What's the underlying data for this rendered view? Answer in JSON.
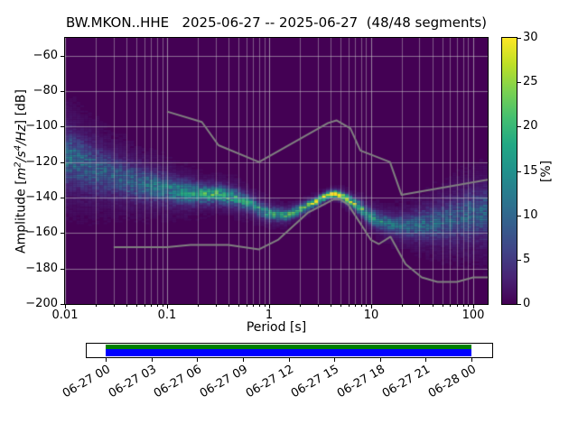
{
  "title": "BW.MKON..HHE   2025-06-27 -- 2025-06-27  (48/48 segments)",
  "axes": {
    "xlabel": "Period [s]",
    "ylabel": {
      "pre": "Amplitude [",
      "m": "m",
      "sup1": "2",
      "mid": "/s",
      "sup2": "4",
      "tail": "/Hz",
      "post": "] [dB]"
    }
  },
  "colorbar": {
    "label": "[%]",
    "ticks": [
      0,
      5,
      10,
      15,
      20,
      25,
      30
    ],
    "range": [
      0,
      30
    ],
    "colormap": "viridis"
  },
  "timeline": {
    "tick_labels": [
      "06-27 00",
      "06-27 03",
      "06-27 06",
      "06-27 09",
      "06-27 12",
      "06-27 15",
      "06-27 18",
      "06-27 21",
      "06-28 00"
    ],
    "top_stripe_color": "#008000",
    "bottom_stripe_color": "#0000ff"
  },
  "chart_data": {
    "type": "heatmap",
    "title": "BW.MKON..HHE   2025-06-27 -- 2025-06-27  (48/48 segments)",
    "xlabel": "Period [s]",
    "ylabel": "Amplitude [m^2/s^4/Hz] [dB]",
    "xscale": "log",
    "xlim": [
      0.01,
      140
    ],
    "ylim": [
      -200,
      -50
    ],
    "x_ticks": [
      0.01,
      0.1,
      1,
      10,
      100
    ],
    "x_tick_labels": [
      "0.01",
      "0.1",
      "1",
      "10",
      "100"
    ],
    "y_ticks": [
      -60,
      -80,
      -100,
      -120,
      -140,
      -160,
      -180,
      -200
    ],
    "y_tick_labels": [
      "−60",
      "−80",
      "−100",
      "−120",
      "−140",
      "−160",
      "−180",
      "−200"
    ],
    "grid": true,
    "legend": "none",
    "colorbar_label": "[%]",
    "colorbar_ticks": [
      0,
      5,
      10,
      15,
      20,
      25,
      30
    ],
    "colors": {
      "background": "#440154",
      "grid": "#c8c8c8",
      "noise_models": "#808080",
      "viridis_stops": [
        "#440154",
        "#482475",
        "#414487",
        "#355f8d",
        "#2a788e",
        "#21918c",
        "#22a884",
        "#44bf70",
        "#7ad151",
        "#bddf26",
        "#fde725"
      ]
    },
    "psd_distribution": {
      "description": "Probability density of PSD values (percent), per period bin: mode amplitude, gaussian spread, peak probability",
      "periods": [
        0.01,
        0.015,
        0.022,
        0.032,
        0.047,
        0.068,
        0.1,
        0.15,
        0.22,
        0.32,
        0.47,
        0.68,
        1.0,
        1.5,
        2.2,
        3.2,
        4.0,
        4.7,
        6.8,
        10,
        15,
        22,
        32,
        47,
        68,
        100,
        140
      ],
      "mode_db": [
        -117,
        -121,
        -125,
        -128,
        -131,
        -133,
        -135,
        -137,
        -138,
        -138,
        -140,
        -144,
        -149,
        -150,
        -146,
        -141,
        -138,
        -138,
        -143,
        -151,
        -155,
        -156,
        -155,
        -154,
        -152,
        -150,
        -149
      ],
      "spread_db": [
        9,
        8,
        7,
        6,
        5.5,
        5,
        4.5,
        4,
        3.2,
        3,
        3,
        2.6,
        2.2,
        2,
        1.6,
        1.3,
        1.2,
        1.3,
        2,
        2.6,
        3,
        3.6,
        4.5,
        5.5,
        6.5,
        7.5,
        8
      ],
      "peak_percent": [
        10,
        9,
        8,
        8,
        9,
        10,
        11,
        13,
        16,
        17,
        14,
        13,
        15,
        17,
        22,
        27,
        30,
        28,
        20,
        14,
        11,
        10,
        9,
        8.5,
        8,
        8,
        8
      ]
    },
    "noise_models": {
      "nhnm": {
        "periods": [
          0.1,
          0.22,
          0.32,
          0.8,
          3.8,
          4.6,
          6.3,
          7.9,
          15.4,
          20.0,
          140.0
        ],
        "db": [
          -91.5,
          -97.4,
          -110.5,
          -120.0,
          -98.0,
          -96.5,
          -101.0,
          -113.5,
          -120.0,
          -138.5,
          -130.0
        ]
      },
      "nlnm": {
        "periods": [
          0.03,
          0.1,
          0.17,
          0.4,
          0.8,
          1.24,
          2.4,
          4.3,
          5.0,
          6.0,
          10.0,
          12.0,
          15.6,
          21.9,
          31.6,
          45.0,
          70.0,
          101.0,
          140.0
        ],
        "db": [
          -168.0,
          -168.0,
          -166.7,
          -166.7,
          -169.2,
          -163.7,
          -148.6,
          -141.1,
          -141.1,
          -144.0,
          -163.8,
          -166.2,
          -162.1,
          -177.5,
          -185.0,
          -187.5,
          -187.5,
          -185.0,
          -185.0
        ]
      }
    }
  }
}
